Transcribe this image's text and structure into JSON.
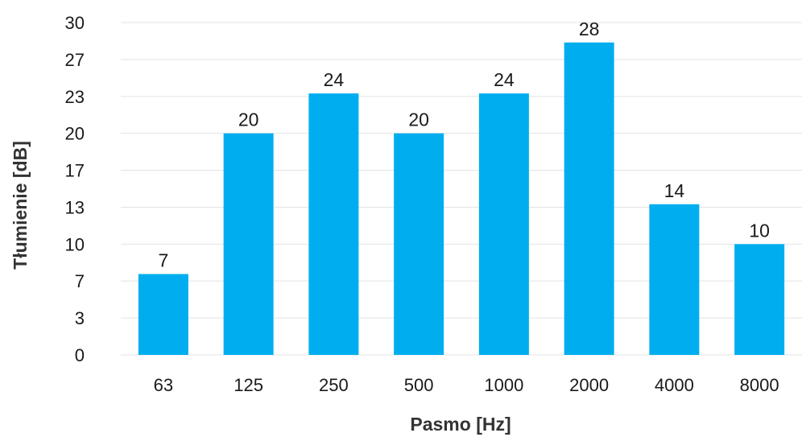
{
  "chart_data": {
    "type": "bar",
    "title": "",
    "xlabel": "Pasmo [Hz]",
    "ylabel": "Tłumienie [dB]",
    "categories": [
      "63",
      "125",
      "250",
      "500",
      "1000",
      "2000",
      "4000",
      "8000"
    ],
    "values": [
      7.3,
      20,
      23.6,
      20,
      23.6,
      28.2,
      13.6,
      10
    ],
    "data_labels": [
      "7",
      "20",
      "24",
      "20",
      "24",
      "28",
      "14",
      "10"
    ],
    "ylim": [
      0,
      30
    ],
    "yticks": [
      0,
      3.33,
      6.67,
      10,
      13.33,
      16.67,
      20,
      23.33,
      26.67,
      30
    ],
    "ytick_labels": [
      "0",
      "3",
      "7",
      "10",
      "13",
      "17",
      "20",
      "23",
      "27",
      "30"
    ],
    "grid": true,
    "legend": "none",
    "bar_color": "#00AEEF"
  }
}
